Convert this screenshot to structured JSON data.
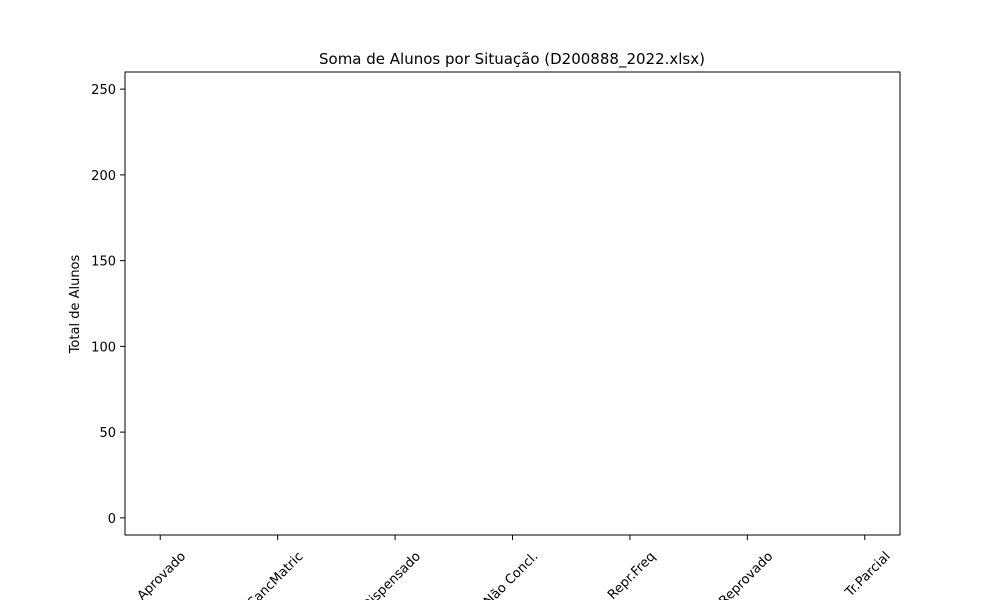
{
  "chart_data": {
    "type": "bar",
    "title": "Soma de Alunos por Situação (D200888_2022.xlsx)",
    "xlabel": "",
    "ylabel": "Total de Alunos",
    "categories": [
      "Aprovado",
      "CancMatric",
      "Dispensado",
      "Não Concl.",
      "Repr.Freq",
      "Reprovado",
      "Tr.Parcial"
    ],
    "values": [
      0,
      0,
      0,
      0,
      0,
      0,
      0
    ],
    "ylim": [
      -10,
      260
    ],
    "yticks": [
      "0",
      "50",
      "100",
      "150",
      "200",
      "250"
    ],
    "ytick_values": [
      0,
      50,
      100,
      150,
      200,
      250
    ],
    "grid": false,
    "colors": {
      "bar": "#1f77b4",
      "axis": "#000000"
    }
  }
}
